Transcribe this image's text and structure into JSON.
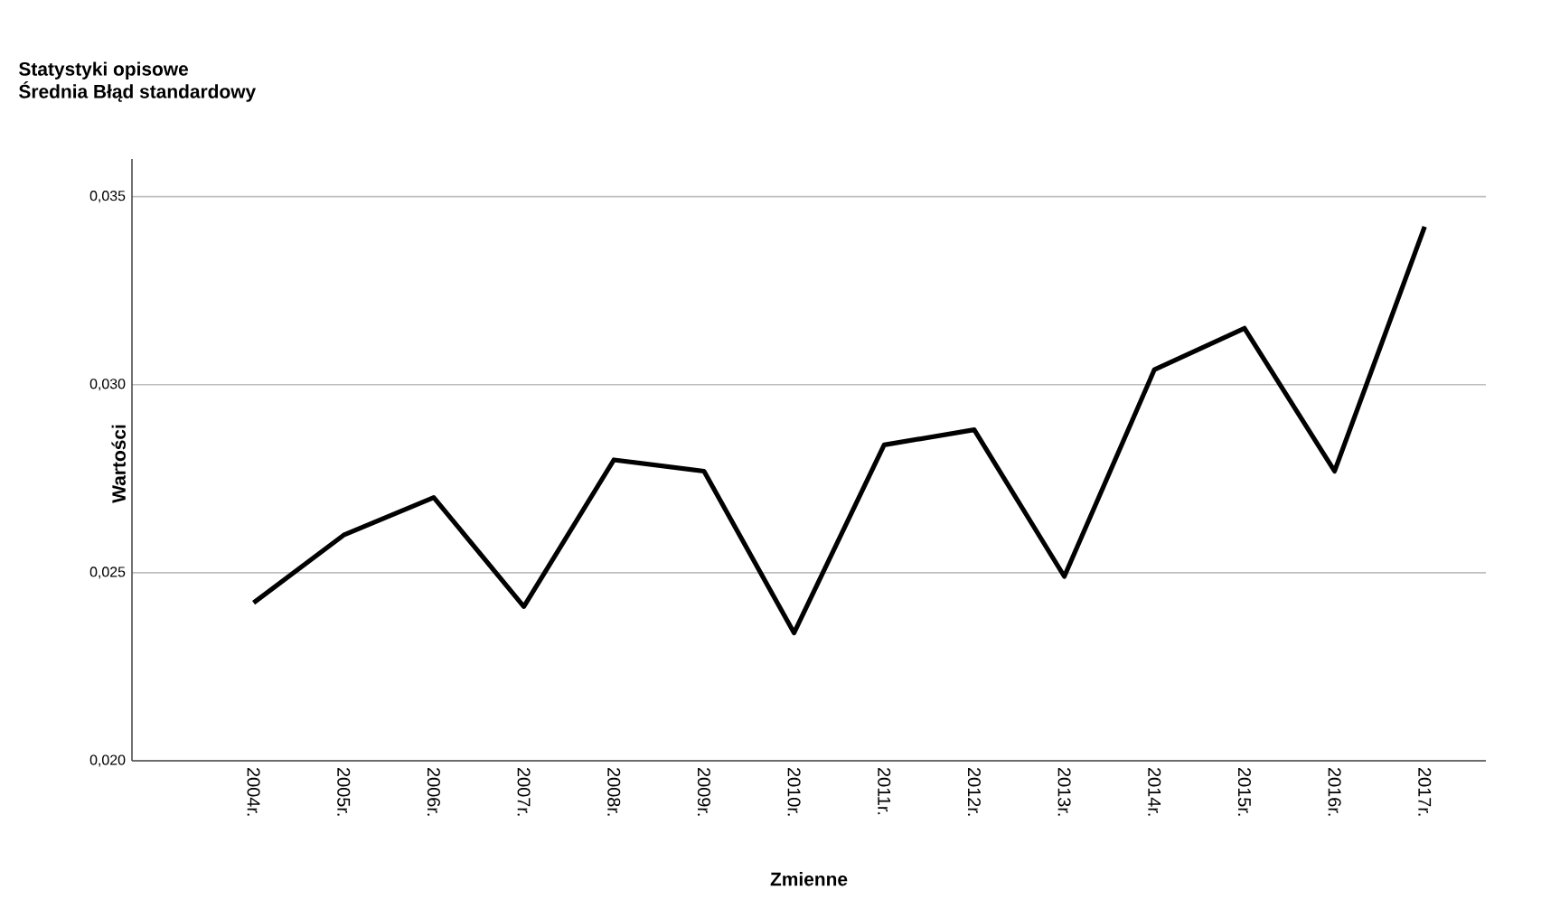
{
  "chart_data": {
    "type": "line",
    "title": "Statystyki opisowe",
    "subtitle": "Średnia Błąd standardowy",
    "xlabel": "Zmienne",
    "ylabel": "Wartości",
    "categories": [
      "2004r.",
      "2005r.",
      "2006r.",
      "2007r.",
      "2008r.",
      "2009r.",
      "2010r.",
      "2011r.",
      "2012r.",
      "2013r.",
      "2014r.",
      "2015r.",
      "2016r.",
      "2017r."
    ],
    "values": [
      0.0242,
      0.026,
      0.027,
      0.0241,
      0.028,
      0.0277,
      0.0234,
      0.0284,
      0.0288,
      0.0249,
      0.0304,
      0.0315,
      0.0277,
      0.0342
    ],
    "color": "#000000",
    "ylim": [
      0.02,
      0.036
    ],
    "yticks": [
      {
        "value": 0.02,
        "label": "0,020"
      },
      {
        "value": 0.025,
        "label": "0,025"
      },
      {
        "value": 0.03,
        "label": "0,030"
      },
      {
        "value": 0.035,
        "label": "0,035"
      }
    ],
    "grid": "y",
    "marker": "none",
    "line_style": "solid"
  }
}
